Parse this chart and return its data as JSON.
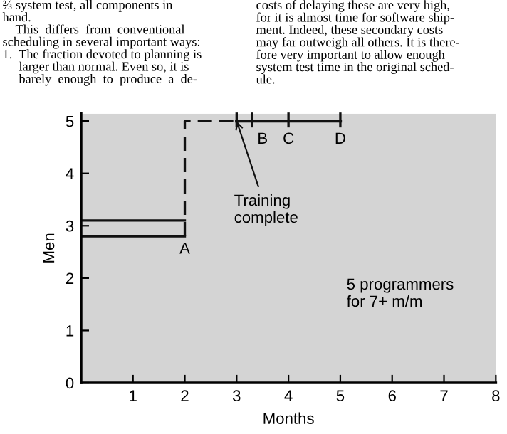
{
  "chart_data": {
    "type": "line",
    "xlabel": "Months",
    "ylabel": "Men",
    "xlim": [
      0,
      8
    ],
    "ylim": [
      0,
      5.14
    ],
    "xticks": [
      {
        "value": 0,
        "label": null
      },
      1,
      2,
      3,
      4,
      5,
      6,
      7,
      8
    ],
    "yticks": [
      0,
      1,
      2,
      3,
      4,
      5
    ],
    "grid": false,
    "marker": "none",
    "bands": [
      {
        "axis": "x",
        "from": 0,
        "to": 8,
        "color": "#d4d4d4"
      }
    ],
    "series": [
      {
        "color": "#111111",
        "line_style": "solid",
        "x": [
          0,
          2
        ],
        "values": [
          3.1,
          3.1
        ]
      },
      {
        "color": "#111111",
        "line_style": "solid",
        "x": [
          0,
          2
        ],
        "values": [
          2.8,
          2.8
        ]
      },
      {
        "color": "#111111",
        "line_style": "dashed",
        "x": [
          2,
          2,
          3
        ],
        "values": [
          2.8,
          5,
          5
        ]
      },
      {
        "color": "#111111",
        "line_style": "solid",
        "x": [
          3,
          5
        ],
        "values": [
          5,
          5
        ]
      },
      {
        "color": "#111111",
        "line_style": "solid",
        "x": [
          3,
          3
        ],
        "values": [
          4.9,
          5.14
        ]
      },
      {
        "color": "#111111",
        "line_style": "solid",
        "x": [
          3.3,
          3.3
        ],
        "values": [
          4.9,
          5.14
        ]
      },
      {
        "color": "#111111",
        "line_style": "solid",
        "x": [
          4,
          4
        ],
        "values": [
          4.9,
          5.14
        ]
      },
      {
        "color": "#111111",
        "line_style": "solid",
        "x": [
          5,
          5
        ],
        "values": [
          4.9,
          5.14
        ]
      }
    ],
    "annotations": [
      "⅔ system test, all components in\nhand.\n    This  differs  from  conventional\nscheduling in several important ways:\n1.  The fraction devoted to planning is\n     larger than normal. Even so, it is\n     barely  enough  to  produce  a  de-",
      "costs of delaying these are very high,\nfor it is almost time for software ship-\nment. Indeed, these secondary costs\nmay far outweigh all others. It is there-\nfore very important to allow enough\nsystem test time in the original sched-\nule.",
      {
        "text": "A",
        "x": 2,
        "y": 2.8
      },
      {
        "text": "B",
        "x": 3.5,
        "y": 4.9
      },
      {
        "text": "C",
        "x": 4,
        "y": 4.9
      },
      {
        "text": "D",
        "x": 5,
        "y": 4.9
      },
      {
        "text": "Training\ncomplete",
        "x": 3,
        "y": 5
      },
      "5 programmers\nfor 7+ m/m"
    ]
  }
}
